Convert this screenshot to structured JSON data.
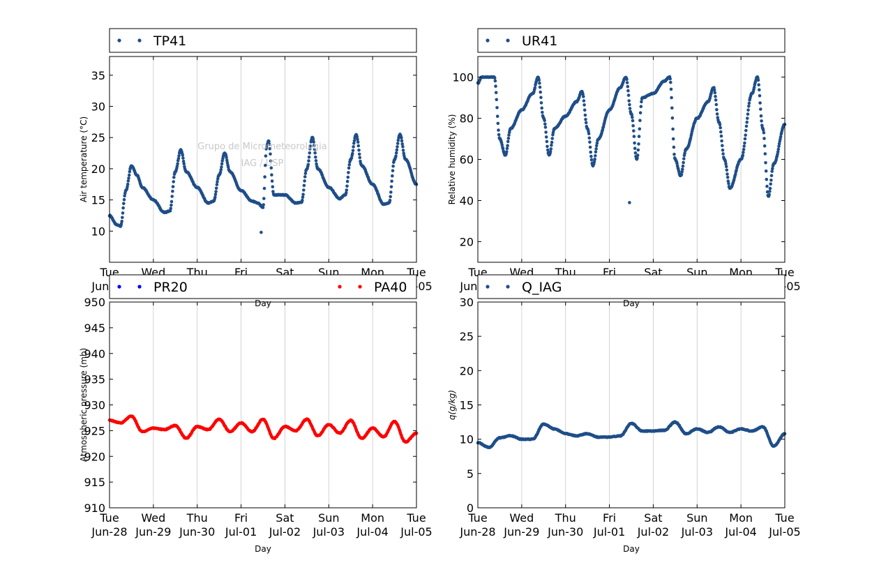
{
  "colors": {
    "series_blue": "#1f4e89",
    "pr20_blue": "#0000ff",
    "pa40_red": "#ff0000",
    "grid": "#c8c8c8",
    "watermark": "#c8c8c8"
  },
  "watermark": {
    "line1": "Grupo de Micrometeorologia",
    "line2": "IAG / USP"
  },
  "chart_data": [
    {
      "type": "scatter",
      "panel": "top-left",
      "xlabel": "Day",
      "ylabel": "Air temperature (°C)",
      "ylim": [
        5,
        38
      ],
      "yticks": [
        10,
        15,
        20,
        25,
        30,
        35
      ],
      "xticks": [
        {
          "day": "Tue",
          "date": "Jun-28"
        },
        {
          "day": "Wed",
          "date": "Jun-29"
        },
        {
          "day": "Thu",
          "date": "Jun-30"
        },
        {
          "day": "Fri",
          "date": "Jul-01"
        },
        {
          "day": "Sat",
          "date": "Jul-02"
        },
        {
          "day": "Sun",
          "date": "Jul-03"
        },
        {
          "day": "Mon",
          "date": "Jul-04"
        },
        {
          "day": "Tue",
          "date": "Jul-05"
        }
      ],
      "grid": "vertical",
      "legend": {
        "placement": "above",
        "entries": [
          {
            "label": "TP41",
            "color": "#1f4e89"
          }
        ]
      },
      "series": [
        {
          "name": "TP41",
          "color": "#1f4e89",
          "x": [
            "2016-06-28 00:00",
            "2016-06-28 04:00",
            "2016-06-28 06:00",
            "2016-06-28 09:00",
            "2016-06-28 12:00",
            "2016-06-28 15:00",
            "2016-06-28 18:00",
            "2016-06-29 00:00",
            "2016-06-29 06:00",
            "2016-06-29 09:00",
            "2016-06-29 12:00",
            "2016-06-29 15:00",
            "2016-06-29 18:00",
            "2016-06-30 00:00",
            "2016-06-30 06:00",
            "2016-06-30 09:00",
            "2016-06-30 12:00",
            "2016-06-30 15:00",
            "2016-06-30 18:00",
            "2016-07-01 00:00",
            "2016-07-01 06:00",
            "2016-07-01 09:00",
            "2016-07-01 12:00",
            "2016-07-01 14:00",
            "2016-07-01 15:00",
            "2016-07-01 18:00",
            "2016-07-02 00:00",
            "2016-07-02 06:00",
            "2016-07-02 09:00",
            "2016-07-02 12:00",
            "2016-07-02 15:00",
            "2016-07-02 18:00",
            "2016-07-03 00:00",
            "2016-07-03 06:00",
            "2016-07-03 09:00",
            "2016-07-03 12:00",
            "2016-07-03 15:00",
            "2016-07-03 18:00",
            "2016-07-04 00:00",
            "2016-07-04 06:00",
            "2016-07-04 09:00",
            "2016-07-04 12:00",
            "2016-07-04 15:00",
            "2016-07-04 18:00",
            "2016-07-05 00:00"
          ],
          "y": [
            12.5,
            11.0,
            10.8,
            16.5,
            20.5,
            19.0,
            17.0,
            15.0,
            13.0,
            13.2,
            19.5,
            23.0,
            19.5,
            17.0,
            14.5,
            14.8,
            19.0,
            22.5,
            19.5,
            16.5,
            14.8,
            14.5,
            13.8,
            23.5,
            24.5,
            15.8,
            15.8,
            14.5,
            14.6,
            20.0,
            25.0,
            20.0,
            17.0,
            15.2,
            15.8,
            21.5,
            25.5,
            20.5,
            17.5,
            14.3,
            14.5,
            21.5,
            25.5,
            21.5,
            17.5
          ]
        },
        {
          "name": "TP41 outlier",
          "color": "#1f4e89",
          "x": [
            "2016-07-01 11:00"
          ],
          "y": [
            9.8
          ]
        }
      ]
    },
    {
      "type": "scatter",
      "panel": "top-right",
      "xlabel": "Day",
      "ylabel": "Relative humidity (%)",
      "ylim": [
        10,
        110
      ],
      "yticks": [
        20,
        40,
        60,
        80,
        100
      ],
      "xticks": [
        {
          "day": "Tue",
          "date": "Jun-28"
        },
        {
          "day": "Wed",
          "date": "Jun-29"
        },
        {
          "day": "Thu",
          "date": "Jun-30"
        },
        {
          "day": "Fri",
          "date": "Jul-01"
        },
        {
          "day": "Sat",
          "date": "Jul-02"
        },
        {
          "day": "Sun",
          "date": "Jul-03"
        },
        {
          "day": "Mon",
          "date": "Jul-04"
        },
        {
          "day": "Tue",
          "date": "Jul-05"
        }
      ],
      "grid": "vertical",
      "legend": {
        "placement": "above",
        "entries": [
          {
            "label": "UR41",
            "color": "#1f4e89"
          }
        ]
      },
      "series": [
        {
          "name": "UR41",
          "color": "#1f4e89",
          "x": [
            "2016-06-28 00:00",
            "2016-06-28 02:00",
            "2016-06-28 09:00",
            "2016-06-28 12:00",
            "2016-06-28 15:00",
            "2016-06-28 18:00",
            "2016-06-29 00:00",
            "2016-06-29 06:00",
            "2016-06-29 09:00",
            "2016-06-29 12:00",
            "2016-06-29 15:00",
            "2016-06-29 18:00",
            "2016-06-30 00:00",
            "2016-06-30 06:00",
            "2016-06-30 09:00",
            "2016-06-30 12:00",
            "2016-06-30 15:00",
            "2016-06-30 18:00",
            "2016-07-01 00:00",
            "2016-07-01 06:00",
            "2016-07-01 09:00",
            "2016-07-01 12:00",
            "2016-07-01 15:00",
            "2016-07-01 18:00",
            "2016-07-02 00:00",
            "2016-07-02 06:00",
            "2016-07-02 09:00",
            "2016-07-02 12:00",
            "2016-07-02 15:00",
            "2016-07-02 18:00",
            "2016-07-03 00:00",
            "2016-07-03 06:00",
            "2016-07-03 09:00",
            "2016-07-03 12:00",
            "2016-07-03 15:00",
            "2016-07-03 18:00",
            "2016-07-04 00:00",
            "2016-07-04 06:00",
            "2016-07-04 09:00",
            "2016-07-04 12:00",
            "2016-07-04 15:00",
            "2016-07-04 18:00",
            "2016-07-05 00:00"
          ],
          "y": [
            97,
            100,
            100,
            70,
            62,
            75,
            84,
            92,
            100,
            80,
            62,
            75,
            81,
            88,
            93,
            75,
            57,
            70,
            84,
            95,
            100,
            82,
            60,
            90,
            92,
            98,
            100,
            60,
            52,
            65,
            80,
            88,
            95,
            78,
            60,
            46,
            60,
            92,
            100,
            75,
            42,
            58,
            77
          ]
        },
        {
          "name": "UR41 outlier",
          "color": "#1f4e89",
          "x": [
            "2016-07-01 11:00"
          ],
          "y": [
            39
          ]
        }
      ]
    },
    {
      "type": "scatter",
      "panel": "bottom-left",
      "xlabel": "Day",
      "ylabel": "Atmospheric pressure (mb)",
      "ylim": [
        910,
        950
      ],
      "yticks": [
        910,
        915,
        920,
        925,
        930,
        935,
        940,
        945,
        950
      ],
      "xticks": [
        {
          "day": "Tue",
          "date": "Jun-28"
        },
        {
          "day": "Wed",
          "date": "Jun-29"
        },
        {
          "day": "Thu",
          "date": "Jun-30"
        },
        {
          "day": "Fri",
          "date": "Jul-01"
        },
        {
          "day": "Sat",
          "date": "Jul-02"
        },
        {
          "day": "Sun",
          "date": "Jul-03"
        },
        {
          "day": "Mon",
          "date": "Jul-04"
        },
        {
          "day": "Tue",
          "date": "Jul-05"
        }
      ],
      "grid": "vertical",
      "legend": {
        "placement": "above",
        "entries": [
          {
            "label": "PR20",
            "color": "#0000ff"
          },
          {
            "label": "PA40",
            "color": "#ff0000"
          }
        ]
      },
      "series": [
        {
          "name": "PA40",
          "color": "#ff0000",
          "x": [
            "2016-06-28 00:00",
            "2016-06-28 06:00",
            "2016-06-28 12:00",
            "2016-06-28 18:00",
            "2016-06-29 00:00",
            "2016-06-29 06:00",
            "2016-06-29 12:00",
            "2016-06-29 18:00",
            "2016-06-30 00:00",
            "2016-06-30 06:00",
            "2016-06-30 12:00",
            "2016-06-30 18:00",
            "2016-07-01 00:00",
            "2016-07-01 06:00",
            "2016-07-01 12:00",
            "2016-07-01 18:00",
            "2016-07-02 00:00",
            "2016-07-02 06:00",
            "2016-07-02 12:00",
            "2016-07-02 18:00",
            "2016-07-03 00:00",
            "2016-07-03 06:00",
            "2016-07-03 12:00",
            "2016-07-03 18:00",
            "2016-07-04 00:00",
            "2016-07-04 06:00",
            "2016-07-04 12:00",
            "2016-07-04 18:00",
            "2016-07-05 00:00"
          ],
          "y": [
            927.0,
            926.5,
            927.8,
            924.8,
            925.5,
            925.2,
            926.0,
            923.5,
            925.8,
            925.2,
            927.2,
            924.8,
            926.5,
            924.8,
            927.2,
            923.5,
            925.8,
            925.0,
            927.2,
            924.0,
            926.2,
            924.5,
            927.0,
            923.5,
            925.5,
            923.8,
            926.8,
            922.8,
            924.5
          ]
        }
      ]
    },
    {
      "type": "scatter",
      "panel": "bottom-right",
      "xlabel": "Day",
      "ylabel": "q(g/kg)",
      "ylim": [
        0,
        30
      ],
      "yticks": [
        0,
        5,
        10,
        15,
        20,
        25,
        30
      ],
      "xticks": [
        {
          "day": "Tue",
          "date": "Jun-28"
        },
        {
          "day": "Wed",
          "date": "Jun-29"
        },
        {
          "day": "Thu",
          "date": "Jun-30"
        },
        {
          "day": "Fri",
          "date": "Jul-01"
        },
        {
          "day": "Sat",
          "date": "Jul-02"
        },
        {
          "day": "Sun",
          "date": "Jul-03"
        },
        {
          "day": "Mon",
          "date": "Jul-04"
        },
        {
          "day": "Tue",
          "date": "Jul-05"
        }
      ],
      "grid": "vertical",
      "legend": {
        "placement": "above",
        "entries": [
          {
            "label": "Q_IAG",
            "color": "#1f4e89"
          }
        ]
      },
      "series": [
        {
          "name": "Q_IAG",
          "color": "#1f4e89",
          "x": [
            "2016-06-28 00:00",
            "2016-06-28 06:00",
            "2016-06-28 12:00",
            "2016-06-28 18:00",
            "2016-06-29 00:00",
            "2016-06-29 06:00",
            "2016-06-29 12:00",
            "2016-06-29 18:00",
            "2016-06-30 00:00",
            "2016-06-30 06:00",
            "2016-06-30 12:00",
            "2016-06-30 18:00",
            "2016-07-01 00:00",
            "2016-07-01 06:00",
            "2016-07-01 12:00",
            "2016-07-01 18:00",
            "2016-07-02 00:00",
            "2016-07-02 06:00",
            "2016-07-02 12:00",
            "2016-07-02 18:00",
            "2016-07-03 00:00",
            "2016-07-03 06:00",
            "2016-07-03 12:00",
            "2016-07-03 18:00",
            "2016-07-04 00:00",
            "2016-07-04 06:00",
            "2016-07-04 12:00",
            "2016-07-04 18:00",
            "2016-07-05 00:00"
          ],
          "y": [
            9.5,
            8.8,
            10.2,
            10.5,
            10.0,
            10.0,
            12.2,
            11.5,
            10.8,
            10.5,
            10.8,
            10.3,
            10.3,
            10.5,
            12.3,
            11.2,
            11.2,
            11.3,
            12.5,
            10.8,
            11.5,
            11.0,
            11.8,
            11.0,
            11.5,
            11.2,
            11.8,
            9.0,
            10.8
          ]
        }
      ]
    }
  ]
}
